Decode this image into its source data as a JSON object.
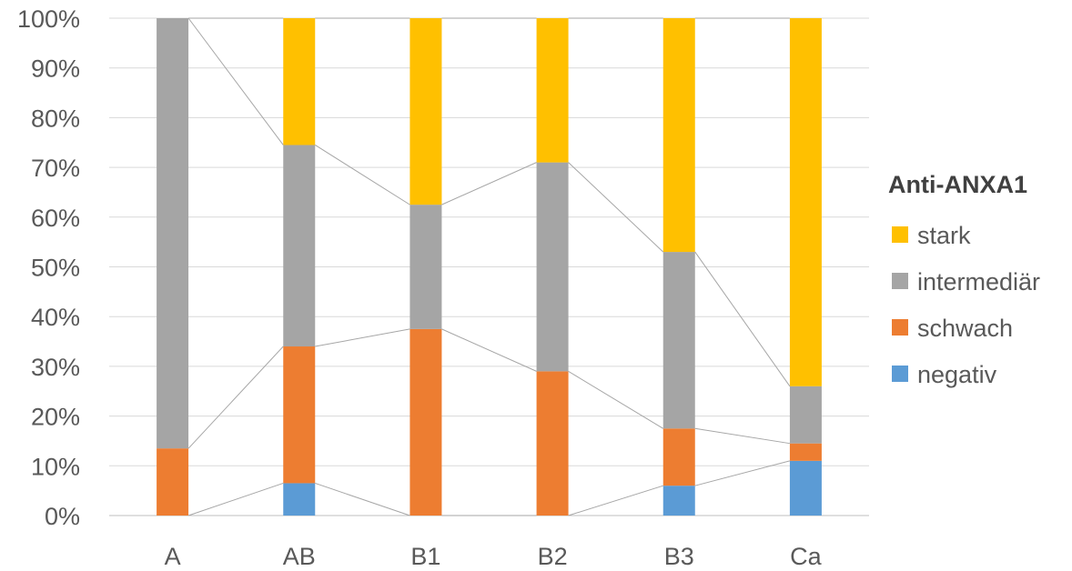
{
  "chart_data": {
    "type": "bar",
    "stacked": true,
    "percent": true,
    "categories": [
      "A",
      "AB",
      "B1",
      "B2",
      "B3",
      "Ca"
    ],
    "series": [
      {
        "name": "negativ",
        "color": "#5B9BD5",
        "values": [
          0,
          6.5,
          0,
          0,
          6,
          11
        ]
      },
      {
        "name": "schwach",
        "color": "#ED7D31",
        "values": [
          13.5,
          27.5,
          37.5,
          29,
          11.5,
          3.5
        ]
      },
      {
        "name": "intermediär",
        "color": "#A5A5A5",
        "values": [
          86.5,
          40.5,
          25,
          42,
          35.5,
          11.5
        ]
      },
      {
        "name": "stark",
        "color": "#FFC000",
        "values": [
          0,
          25.5,
          37.5,
          29,
          47,
          74
        ]
      }
    ],
    "yticks": [
      "0%",
      "10%",
      "20%",
      "30%",
      "40%",
      "50%",
      "60%",
      "70%",
      "80%",
      "90%",
      "100%"
    ],
    "ylim": [
      0,
      100
    ],
    "grid": true,
    "series_lines": true,
    "legend": {
      "title": "Anti-ANXA1",
      "position": "right",
      "order": [
        "stark",
        "intermediär",
        "schwach",
        "negativ"
      ]
    }
  }
}
